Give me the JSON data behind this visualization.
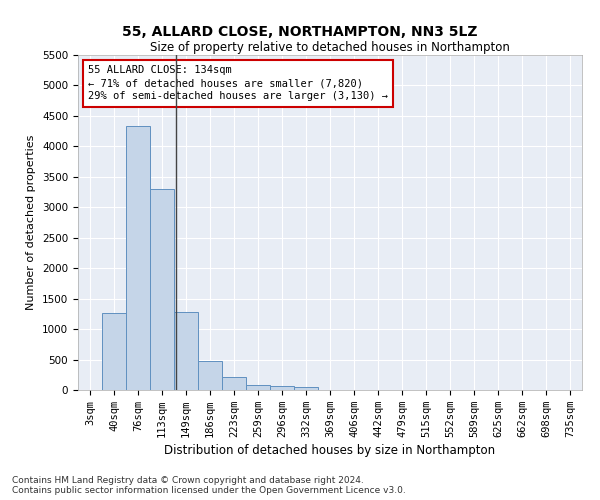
{
  "title": "55, ALLARD CLOSE, NORTHAMPTON, NN3 5LZ",
  "subtitle": "Size of property relative to detached houses in Northampton",
  "xlabel": "Distribution of detached houses by size in Northampton",
  "ylabel": "Number of detached properties",
  "categories": [
    "3sqm",
    "40sqm",
    "76sqm",
    "113sqm",
    "149sqm",
    "186sqm",
    "223sqm",
    "259sqm",
    "296sqm",
    "332sqm",
    "369sqm",
    "406sqm",
    "442sqm",
    "479sqm",
    "515sqm",
    "552sqm",
    "589sqm",
    "625sqm",
    "662sqm",
    "698sqm",
    "735sqm"
  ],
  "values": [
    0,
    1260,
    4330,
    3300,
    1280,
    480,
    215,
    90,
    60,
    50,
    0,
    0,
    0,
    0,
    0,
    0,
    0,
    0,
    0,
    0,
    0
  ],
  "bar_color": "#c5d5e8",
  "bar_edge_color": "#6090c0",
  "bg_color": "#e8edf5",
  "grid_color": "#ffffff",
  "annotation_line1": "55 ALLARD CLOSE: 134sqm",
  "annotation_line2": "← 71% of detached houses are smaller (7,820)",
  "annotation_line3": "29% of semi-detached houses are larger (3,130) →",
  "annotation_box_color": "#cc0000",
  "ylim": [
    0,
    5500
  ],
  "yticks": [
    0,
    500,
    1000,
    1500,
    2000,
    2500,
    3000,
    3500,
    4000,
    4500,
    5000,
    5500
  ],
  "footer_line1": "Contains HM Land Registry data © Crown copyright and database right 2024.",
  "footer_line2": "Contains public sector information licensed under the Open Government Licence v3.0.",
  "title_fontsize": 10,
  "subtitle_fontsize": 8.5,
  "xlabel_fontsize": 8.5,
  "ylabel_fontsize": 8,
  "tick_fontsize": 7.5,
  "footer_fontsize": 6.5,
  "annotation_fontsize": 7.5
}
